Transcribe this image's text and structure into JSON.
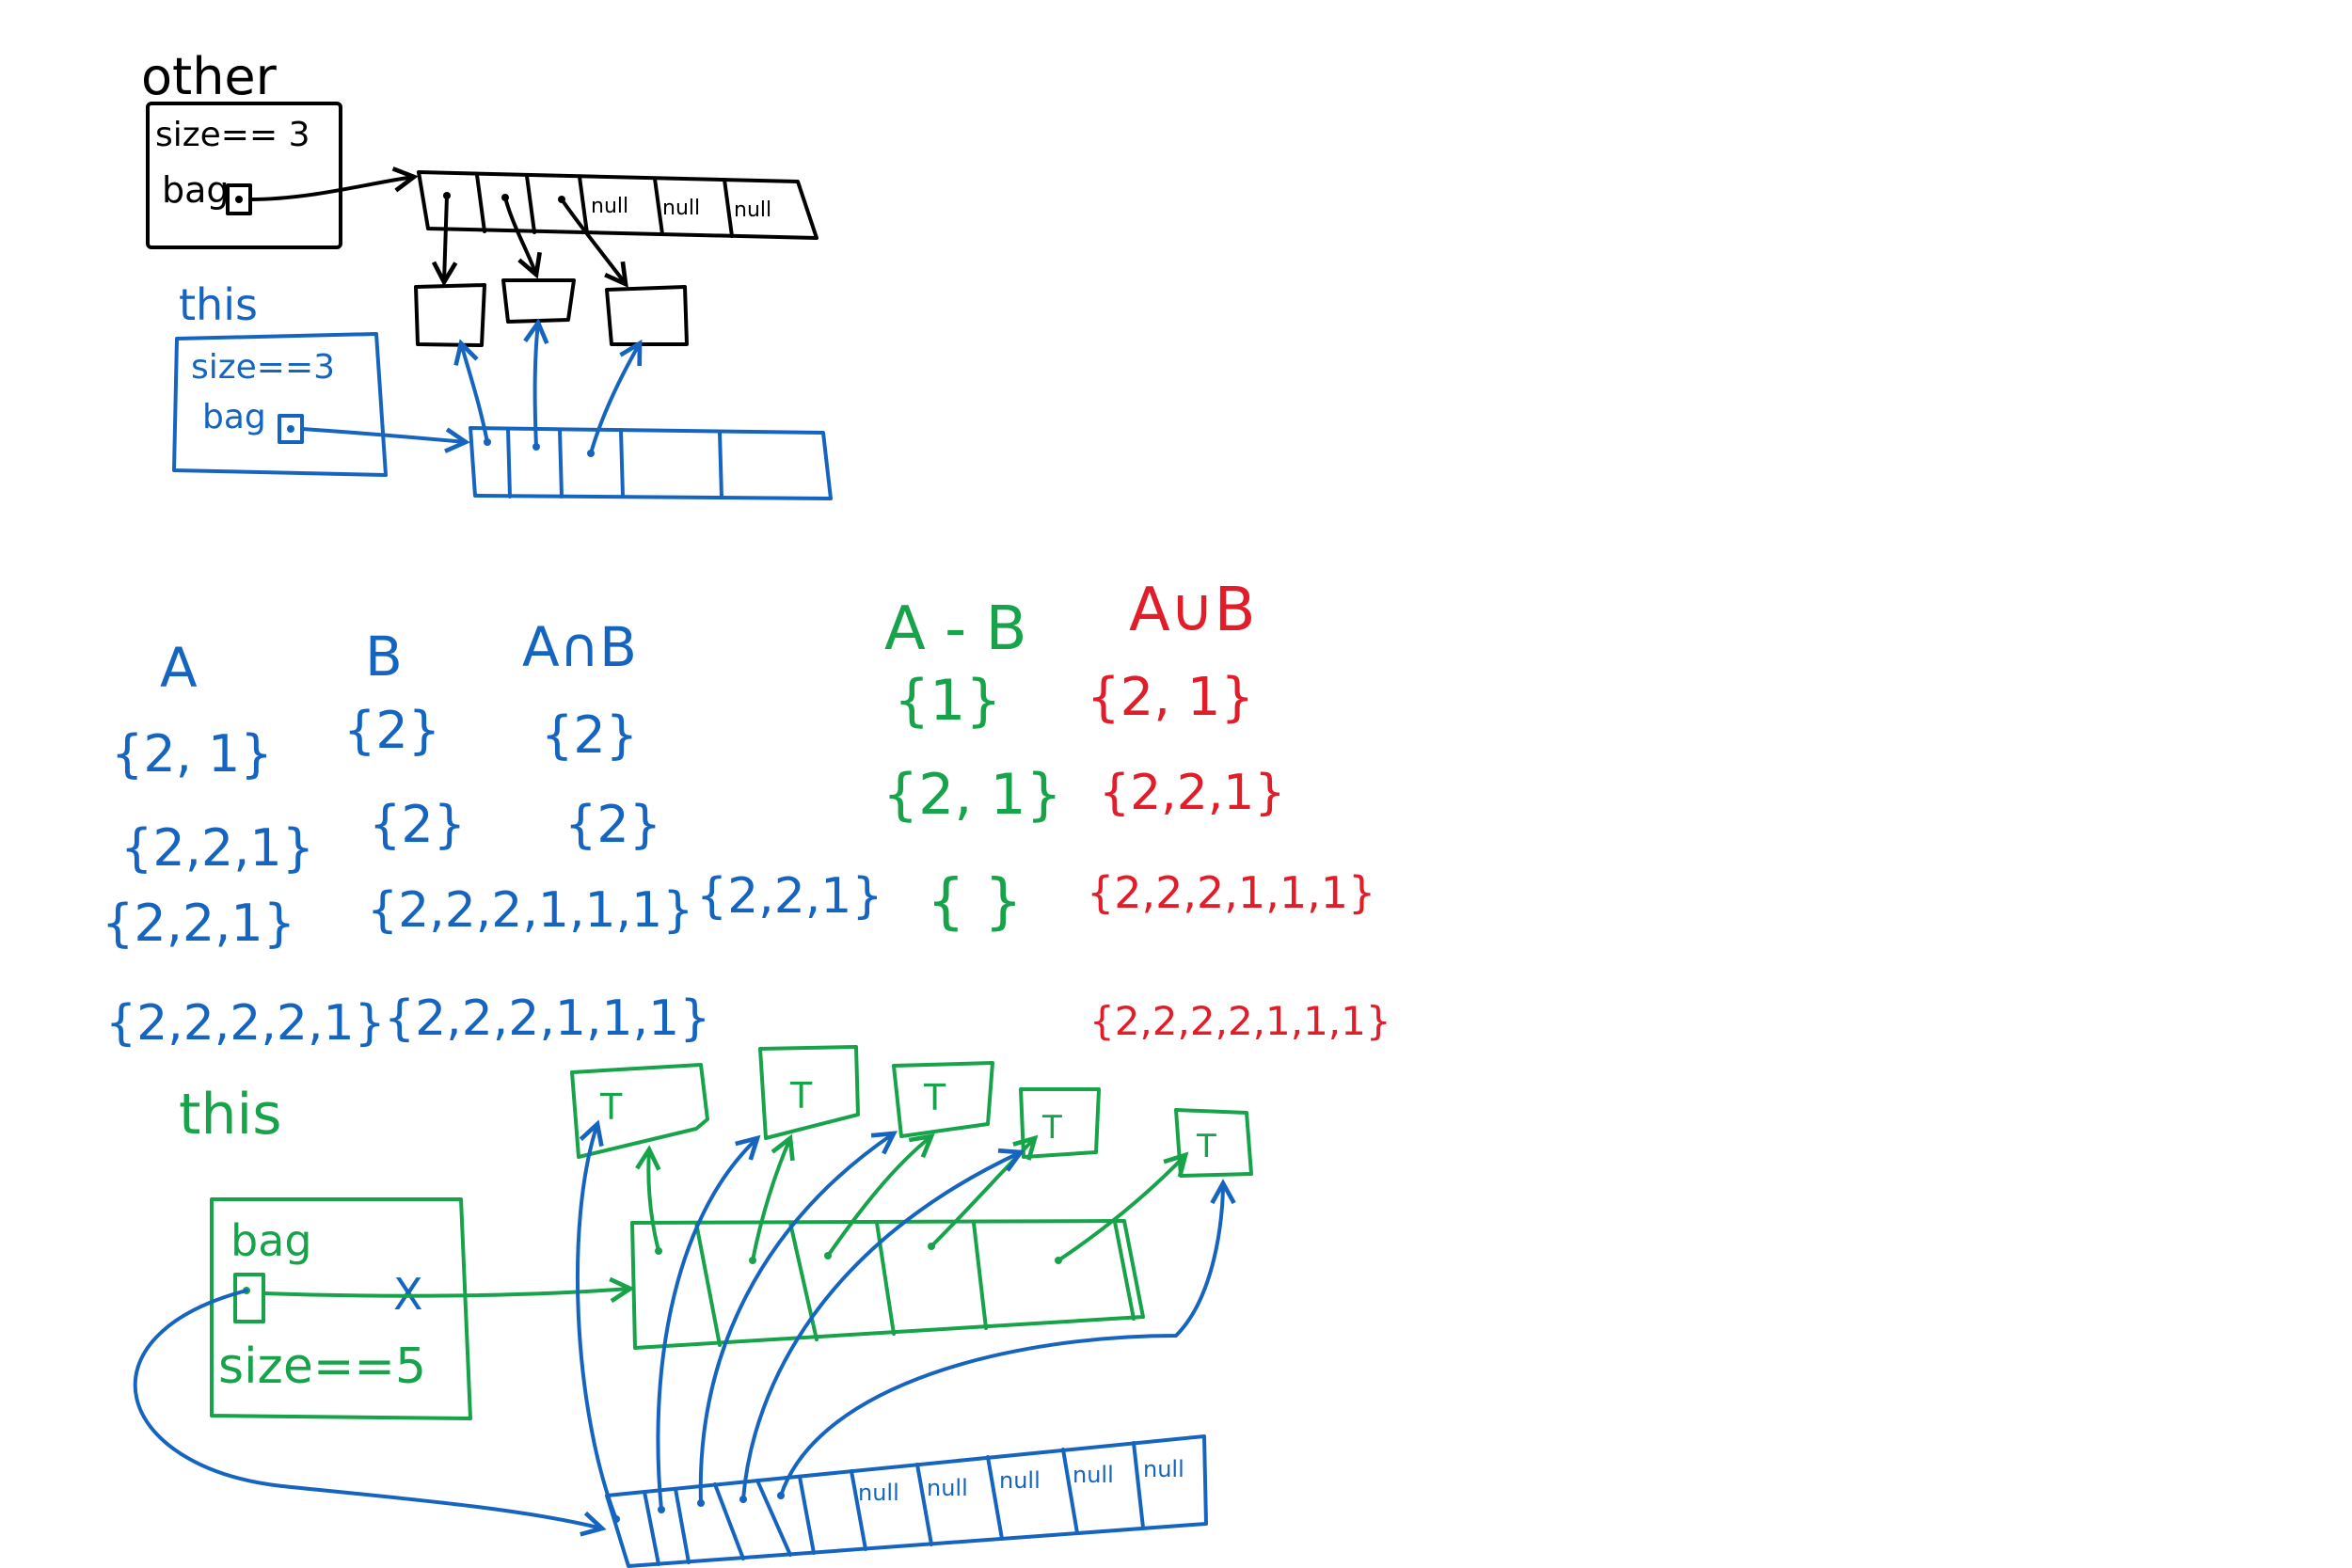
{
  "colors": {
    "black": "#000000",
    "blue": "#1565c0",
    "green": "#16a34a",
    "red": "#e11d2a",
    "background": "#ffffff"
  },
  "top": {
    "other_label": "other",
    "other_size": "size== 3",
    "other_bag": "bag",
    "other_cells": [
      "",
      "",
      "",
      "",
      "null",
      "null",
      "null"
    ],
    "this_label": "this",
    "this_size": "size==3",
    "this_bag": "bag"
  },
  "sets": {
    "headers": {
      "a": "A",
      "b": "B",
      "intersection": "A∩B",
      "difference": "A - B",
      "union": "A∪B"
    },
    "a": [
      "{2, 1}",
      "{2,2,1}",
      "{2,2,1}",
      "{2,2,2,2,1}"
    ],
    "b": [
      "{2}",
      "{2}",
      "{2,2,2,1,1,1}",
      "{2,2,2,1,1,1}"
    ],
    "intersection": [
      "{2}",
      "{2}"
    ],
    "extra": "{2,2,1}",
    "difference": [
      "{1}",
      "{2, 1}",
      "{ }"
    ],
    "union": [
      "{2, 1}",
      "{2,2,1}",
      "{2,2,2,1,1,1}",
      "{2,2,2,2,1,1,1}"
    ]
  },
  "bottom": {
    "this_label": "this",
    "bag": "bag",
    "size": "size==5",
    "cross": "X",
    "node_labels": [
      "T",
      "T",
      "T",
      "T",
      "T"
    ],
    "blue_cells": [
      "",
      "",
      "",
      "",
      "",
      "null",
      "null",
      "null",
      "null",
      "null"
    ]
  }
}
